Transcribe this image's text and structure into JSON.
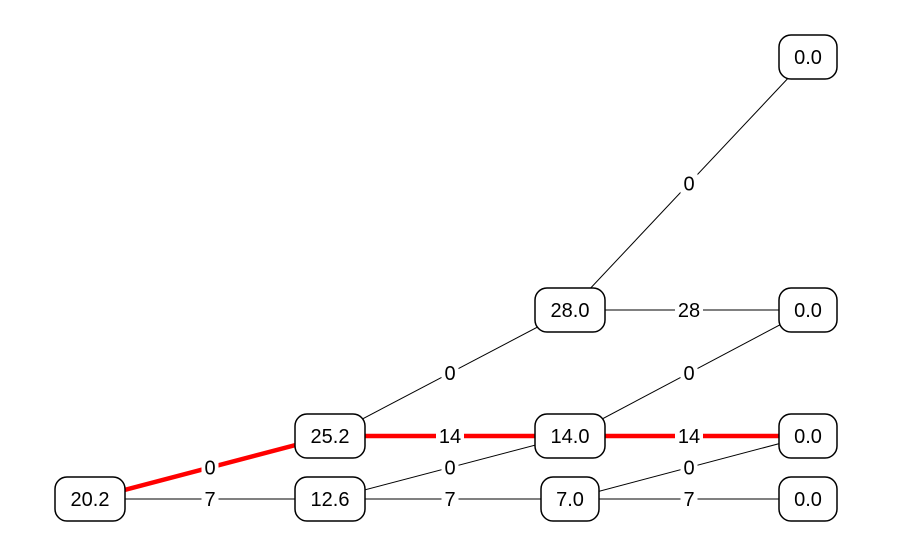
{
  "diagram": {
    "highlight_color": "#ff0000",
    "node_border_color": "#000000",
    "nodes": [
      {
        "id": "n0",
        "label": "20.2"
      },
      {
        "id": "n1",
        "label": "25.2"
      },
      {
        "id": "n2",
        "label": "12.6"
      },
      {
        "id": "n3",
        "label": "28.0"
      },
      {
        "id": "n4",
        "label": "14.0"
      },
      {
        "id": "n5",
        "label": "7.0"
      },
      {
        "id": "n6",
        "label": "0.0"
      },
      {
        "id": "n7",
        "label": "0.0"
      },
      {
        "id": "n8",
        "label": "0.0"
      },
      {
        "id": "n9",
        "label": "0.0"
      }
    ],
    "edges": [
      {
        "from": "n0",
        "to": "n1",
        "label": "0",
        "highlight": true
      },
      {
        "from": "n0",
        "to": "n2",
        "label": "7",
        "highlight": false
      },
      {
        "from": "n1",
        "to": "n3",
        "label": "0",
        "highlight": false
      },
      {
        "from": "n1",
        "to": "n4",
        "label": "14",
        "highlight": true
      },
      {
        "from": "n2",
        "to": "n4",
        "label": "0",
        "highlight": false
      },
      {
        "from": "n2",
        "to": "n5",
        "label": "7",
        "highlight": false
      },
      {
        "from": "n3",
        "to": "n6",
        "label": "0",
        "highlight": false
      },
      {
        "from": "n3",
        "to": "n7",
        "label": "28",
        "highlight": false
      },
      {
        "from": "n4",
        "to": "n7",
        "label": "0",
        "highlight": false
      },
      {
        "from": "n4",
        "to": "n8",
        "label": "14",
        "highlight": true
      },
      {
        "from": "n5",
        "to": "n8",
        "label": "0",
        "highlight": false
      },
      {
        "from": "n5",
        "to": "n9",
        "label": "7",
        "highlight": false
      }
    ]
  }
}
